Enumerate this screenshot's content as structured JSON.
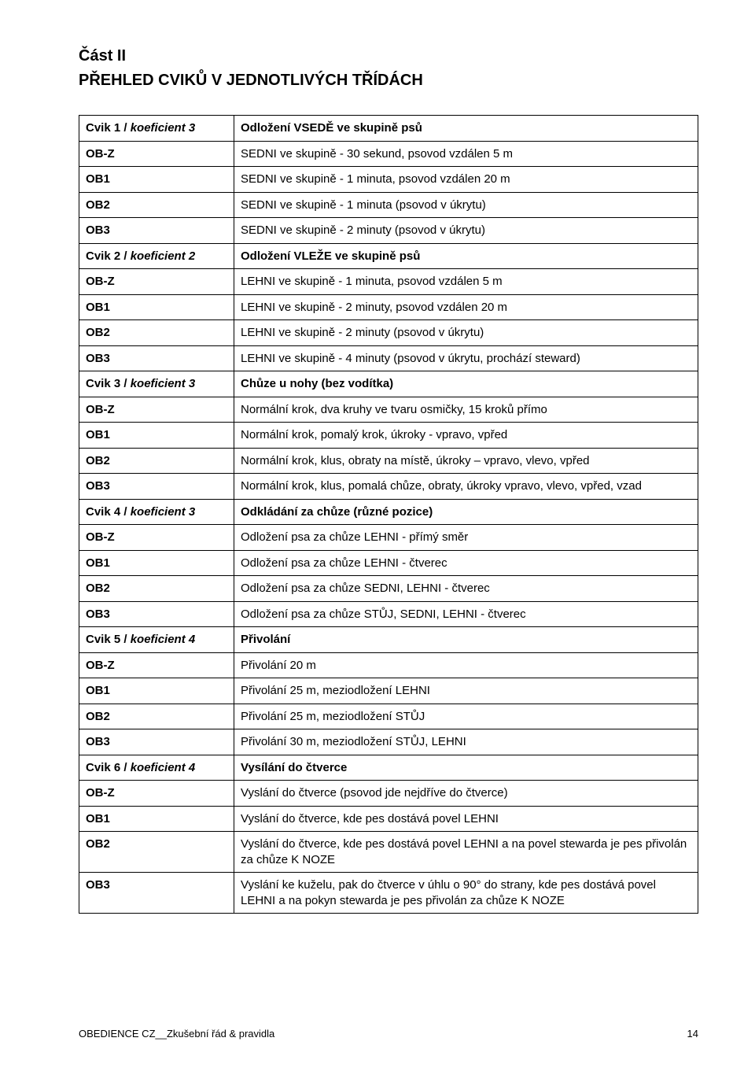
{
  "headings": {
    "part": "Část II",
    "title": "PŘEHLED CVIKŮ V JEDNOTLIVÝCH TŘÍDÁCH"
  },
  "rows": [
    {
      "left": "Cvik 1 / koeficient 3",
      "leftStyle": "italic",
      "right": "Odložení VSEDĚ ve skupině psů",
      "rightBold": true
    },
    {
      "left": "OB-Z",
      "right": "SEDNI ve skupině - 30 sekund, psovod vzdálen 5 m"
    },
    {
      "left": "OB1",
      "right": "SEDNI ve skupině - 1 minuta, psovod vzdálen  20 m"
    },
    {
      "left": "OB2",
      "right": "SEDNI ve skupině - 1 minuta (psovod v úkrytu)"
    },
    {
      "left": "OB3",
      "right": "SEDNI ve skupině - 2 minuty (psovod v úkrytu)"
    },
    {
      "left": "Cvik 2 / koeficient 2",
      "leftStyle": "italic",
      "right": "Odložení VLEŽE ve skupině psů",
      "rightBold": true
    },
    {
      "left": "OB-Z",
      "right": "LEHNI ve skupině - 1 minuta, psovod vzdálen 5 m"
    },
    {
      "left": "OB1",
      "right": "LEHNI ve skupině - 2 minuty, psovod vzdálen 20 m"
    },
    {
      "left": "OB2",
      "right": "LEHNI ve skupině - 2 minuty (psovod v úkrytu)"
    },
    {
      "left": "OB3",
      "right": "LEHNI ve skupině - 4 minuty (psovod v úkrytu, prochází steward)"
    },
    {
      "left": "Cvik 3 / koeficient 3",
      "leftStyle": "italic",
      "right": "Chůze u nohy (bez vodítka)",
      "rightBold": true
    },
    {
      "left": "OB-Z",
      "right": "Normální krok, dva kruhy ve tvaru osmičky, 15 kroků přímo"
    },
    {
      "left": "OB1",
      "right": "Normální krok, pomalý krok, úkroky - vpravo, vpřed"
    },
    {
      "left": "OB2",
      "right": "Normální krok, klus, obraty na místě, úkroky – vpravo, vlevo, vpřed"
    },
    {
      "left": "OB3",
      "right": "Normální krok, klus, pomalá chůze, obraty, úkroky vpravo, vlevo, vpřed, vzad"
    },
    {
      "left": "Cvik 4 / koeficient 3",
      "leftStyle": "italic",
      "right": "Odkládání za chůze (různé pozice)",
      "rightBold": true
    },
    {
      "left": "OB-Z",
      "right": "Odložení psa za chůze LEHNI - přímý směr"
    },
    {
      "left": "OB1",
      "right": "Odložení psa za chůze LEHNI - čtverec"
    },
    {
      "left": "OB2",
      "right": "Odložení psa za chůze SEDNI, LEHNI - čtverec"
    },
    {
      "left": "OB3",
      "right": "Odložení psa za chůze STŮJ, SEDNI, LEHNI - čtverec"
    },
    {
      "left": "Cvik 5 / koeficient 4",
      "leftStyle": "italic",
      "right": "Přivolání",
      "rightBold": true
    },
    {
      "left": "OB-Z",
      "right": "Přivolání 20 m"
    },
    {
      "left": "OB1",
      "right": "Přivolání 25 m, meziodložení LEHNI"
    },
    {
      "left": "OB2",
      "right": "Přivolání 25 m, meziodložení STŮJ"
    },
    {
      "left": "OB3",
      "right": "Přivolání 30 m, meziodložení STŮJ, LEHNI"
    },
    {
      "left": "Cvik 6 / koeficient 4",
      "leftStyle": "italic",
      "right": "Vysílání do čtverce",
      "rightBold": true
    },
    {
      "left": "OB-Z",
      "right": "Vyslání do čtverce (psovod jde nejdříve do čtverce)"
    },
    {
      "left": "OB1",
      "right": "Vyslání do čtverce, kde pes dostává povel LEHNI"
    },
    {
      "left": "OB2",
      "right": "Vyslání do čtverce, kde pes dostává povel LEHNI a na povel stewarda je pes přivolán za chůze K NOZE"
    },
    {
      "left": "OB3",
      "right": "Vyslání ke kuželu, pak do čtverce v úhlu o 90° do strany, kde pes  dostává  povel LEHNI a na pokyn stewarda je pes přivolán za chůze K NOZE"
    }
  ],
  "footer": {
    "text": "OBEDIENCE CZ__Zkušební řád & pravidla",
    "page": "14"
  }
}
